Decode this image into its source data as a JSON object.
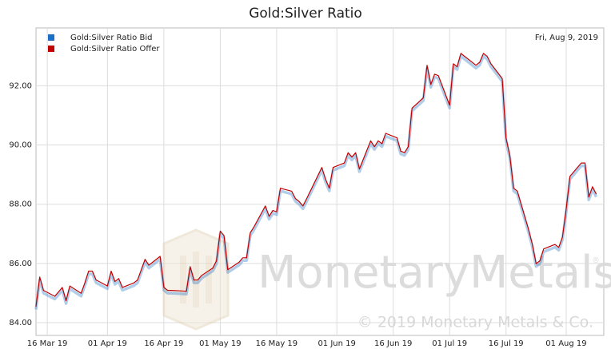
{
  "chart_data": {
    "type": "line",
    "title": "Gold:Silver Ratio",
    "date_label": "Fri, Aug 9, 2019",
    "annotations": [
      "MonetaryMetals",
      "®",
      "© 2019 Monetary Metals & Co."
    ],
    "x": [
      "2019-03-13",
      "2019-03-14",
      "2019-03-15",
      "2019-03-18",
      "2019-03-19",
      "2019-03-20",
      "2019-03-21",
      "2019-03-22",
      "2019-03-25",
      "2019-03-26",
      "2019-03-27",
      "2019-03-28",
      "2019-03-29",
      "2019-04-01",
      "2019-04-02",
      "2019-04-03",
      "2019-04-04",
      "2019-04-05",
      "2019-04-08",
      "2019-04-09",
      "2019-04-10",
      "2019-04-11",
      "2019-04-12",
      "2019-04-15",
      "2019-04-16",
      "2019-04-17",
      "2019-04-18",
      "2019-04-22",
      "2019-04-23",
      "2019-04-24",
      "2019-04-25",
      "2019-04-26",
      "2019-04-29",
      "2019-04-30",
      "2019-05-01",
      "2019-05-02",
      "2019-05-03",
      "2019-05-06",
      "2019-05-07",
      "2019-05-08",
      "2019-05-09",
      "2019-05-10",
      "2019-05-13",
      "2019-05-14",
      "2019-05-15",
      "2019-05-16",
      "2019-05-17",
      "2019-05-20",
      "2019-05-21",
      "2019-05-22",
      "2019-05-23",
      "2019-05-24",
      "2019-05-28",
      "2019-05-29",
      "2019-05-30",
      "2019-05-31",
      "2019-06-03",
      "2019-06-04",
      "2019-06-05",
      "2019-06-06",
      "2019-06-07",
      "2019-06-10",
      "2019-06-11",
      "2019-06-12",
      "2019-06-13",
      "2019-06-14",
      "2019-06-17",
      "2019-06-18",
      "2019-06-19",
      "2019-06-20",
      "2019-06-21",
      "2019-06-24",
      "2019-06-25",
      "2019-06-26",
      "2019-06-27",
      "2019-06-28",
      "2019-07-01",
      "2019-07-02",
      "2019-07-03",
      "2019-07-04",
      "2019-07-05",
      "2019-07-08",
      "2019-07-09",
      "2019-07-10",
      "2019-07-11",
      "2019-07-12",
      "2019-07-15",
      "2019-07-16",
      "2019-07-17",
      "2019-07-18",
      "2019-07-19",
      "2019-07-22",
      "2019-07-23",
      "2019-07-24",
      "2019-07-25",
      "2019-07-26",
      "2019-07-29",
      "2019-07-30",
      "2019-07-31",
      "2019-08-01",
      "2019-08-02",
      "2019-08-05",
      "2019-08-06",
      "2019-08-07",
      "2019-08-08",
      "2019-08-09"
    ],
    "series": [
      {
        "name": "Gold:Silver Ratio Bid",
        "color": "#1c6fc4",
        "values": [
          84.5,
          85.5,
          85.05,
          84.85,
          85.0,
          85.15,
          84.7,
          85.2,
          84.95,
          85.3,
          85.7,
          85.7,
          85.4,
          85.2,
          85.7,
          85.35,
          85.45,
          85.15,
          85.3,
          85.4,
          85.75,
          86.1,
          85.9,
          86.2,
          85.15,
          85.05,
          85.05,
          85.02,
          85.85,
          85.4,
          85.4,
          85.55,
          85.8,
          86.05,
          87.05,
          86.9,
          85.75,
          86.0,
          86.15,
          86.15,
          87.0,
          87.2,
          87.9,
          87.55,
          87.75,
          87.7,
          88.5,
          88.4,
          88.15,
          88.05,
          87.9,
          88.15,
          89.2,
          88.8,
          88.5,
          89.2,
          89.35,
          89.7,
          89.55,
          89.7,
          89.15,
          90.1,
          89.9,
          90.1,
          90.0,
          90.35,
          90.2,
          89.75,
          89.7,
          89.9,
          91.2,
          91.55,
          92.65,
          92.0,
          92.35,
          92.3,
          91.3,
          92.7,
          92.6,
          93.05,
          92.95,
          92.65,
          92.75,
          93.05,
          92.95,
          92.7,
          92.2,
          90.2,
          89.6,
          88.5,
          88.4,
          87.1,
          86.6,
          85.95,
          86.05,
          86.45,
          86.6,
          86.5,
          86.85,
          87.8,
          88.9,
          89.35,
          89.35,
          88.2,
          88.55,
          88.3
        ]
      },
      {
        "name": "Gold:Silver Ratio Offer",
        "color": "#c00000",
        "values": [
          84.54,
          85.54,
          85.09,
          84.89,
          85.04,
          85.19,
          84.74,
          85.24,
          84.99,
          85.34,
          85.74,
          85.74,
          85.44,
          85.24,
          85.74,
          85.39,
          85.49,
          85.19,
          85.34,
          85.44,
          85.79,
          86.14,
          85.94,
          86.24,
          85.19,
          85.09,
          85.09,
          85.06,
          85.89,
          85.44,
          85.44,
          85.59,
          85.84,
          86.09,
          87.09,
          86.94,
          85.79,
          86.04,
          86.19,
          86.19,
          87.04,
          87.24,
          87.94,
          87.59,
          87.79,
          87.74,
          88.54,
          88.44,
          88.19,
          88.09,
          87.94,
          88.19,
          89.24,
          88.84,
          88.54,
          89.24,
          89.39,
          89.74,
          89.59,
          89.74,
          89.19,
          90.14,
          89.94,
          90.14,
          90.04,
          90.39,
          90.24,
          89.79,
          89.74,
          89.94,
          91.24,
          91.59,
          92.69,
          92.04,
          92.39,
          92.34,
          91.34,
          92.74,
          92.64,
          93.09,
          92.99,
          92.69,
          92.79,
          93.09,
          92.99,
          92.74,
          92.24,
          90.24,
          89.64,
          88.54,
          88.44,
          87.14,
          86.64,
          85.99,
          86.09,
          86.49,
          86.64,
          86.54,
          86.89,
          87.84,
          88.94,
          89.39,
          89.39,
          88.24,
          88.59,
          88.34
        ]
      }
    ],
    "xlim": [
      "2019-03-13",
      "2019-08-11"
    ],
    "xticks": [
      {
        "value": "2019-03-16",
        "label": "16 Mar 19"
      },
      {
        "value": "2019-04-01",
        "label": "01 Apr 19"
      },
      {
        "value": "2019-04-16",
        "label": "16 Apr 19"
      },
      {
        "value": "2019-05-01",
        "label": "01 May 19"
      },
      {
        "value": "2019-05-16",
        "label": "16 May 19"
      },
      {
        "value": "2019-06-01",
        "label": "01 Jun 19"
      },
      {
        "value": "2019-06-16",
        "label": "16 Jun 19"
      },
      {
        "value": "2019-07-01",
        "label": "01 Jul 19"
      },
      {
        "value": "2019-07-16",
        "label": "16 Jul 19"
      },
      {
        "value": "2019-08-01",
        "label": "01 Aug 19"
      }
    ],
    "ylim": [
      83.57,
      93.95
    ],
    "yticks": [
      {
        "value": 84,
        "label": "84.00"
      },
      {
        "value": 86,
        "label": "86.00"
      },
      {
        "value": 88,
        "label": "88.00"
      },
      {
        "value": 90,
        "label": "90.00"
      },
      {
        "value": 92,
        "label": "92.00"
      }
    ],
    "grid": true
  }
}
